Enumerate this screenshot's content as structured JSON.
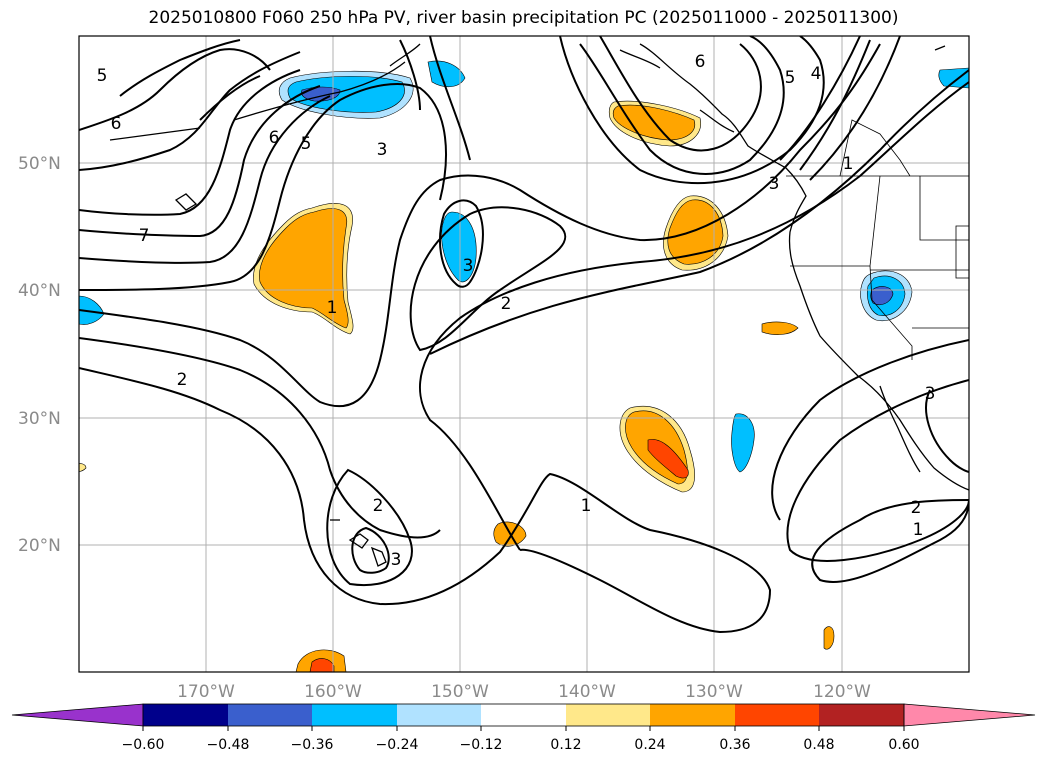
{
  "title": "2025010800 F060 250 hPa PV, river basin precipitation PC (2025011000 - 2025011300)",
  "lat_labels": [
    "50°N",
    "40°N",
    "30°N",
    "20°N"
  ],
  "lon_labels": [
    "170°W",
    "160°W",
    "150°W",
    "140°W",
    "130°W",
    "120°W"
  ],
  "contour_labels": [
    "5",
    "6",
    "6",
    "5",
    "3",
    "7",
    "1",
    "3",
    "2",
    "2",
    "2",
    "3",
    "1",
    "6",
    "5",
    "4",
    "1",
    "3",
    "2",
    "1",
    "3"
  ],
  "colorbar": {
    "ticks": [
      "−0.60",
      "−0.48",
      "−0.36",
      "−0.24",
      "−0.12",
      "0.12",
      "0.24",
      "0.36",
      "0.48",
      "0.60"
    ],
    "colors": [
      "#9932cc",
      "#00008b",
      "#3a5fcd",
      "#00bfff",
      "#b0e2ff",
      "#ffffff",
      "#ffe88a",
      "#ffa500",
      "#ff4500",
      "#b22222",
      "#ff88aa"
    ]
  }
}
